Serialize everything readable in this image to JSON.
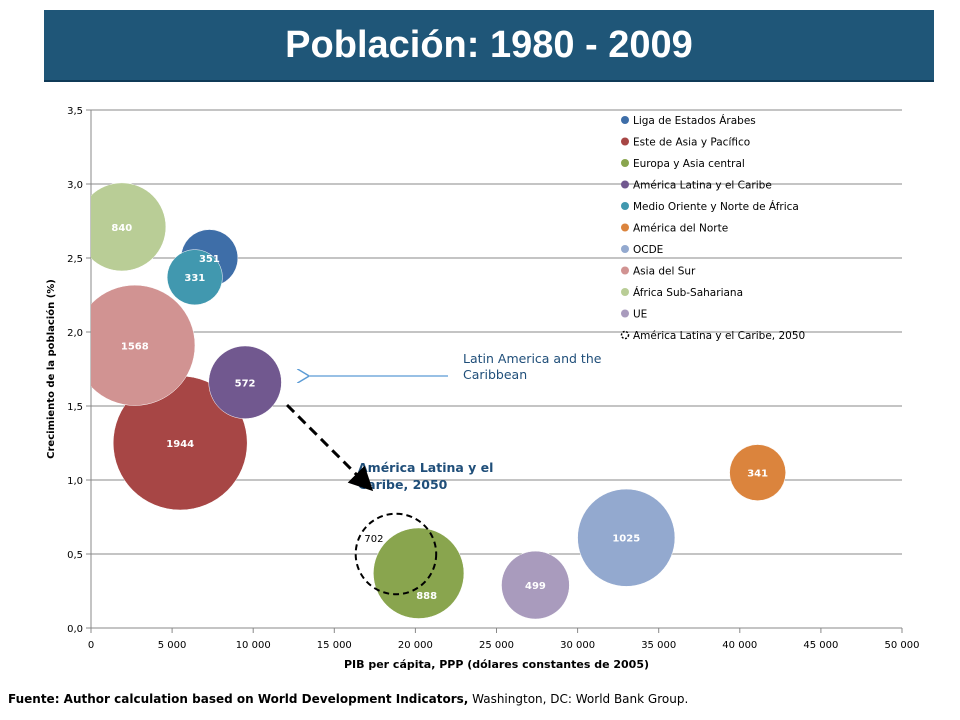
{
  "header": {
    "title": "Población: 1980 - 2009"
  },
  "footer": {
    "bold": "Fuente: Author calculation based on World Development Indicators,",
    "rest": " Washington, DC: World Bank Group."
  },
  "chart_data": {
    "type": "bubble",
    "title": "",
    "xlabel": "PIB per cápita, PPP (dólares constantes de 2005)",
    "ylabel": "Crecimiento de la población (%)",
    "xlim": [
      0,
      50000
    ],
    "ylim": [
      0,
      3.5
    ],
    "x_ticks": [
      0,
      5000,
      10000,
      15000,
      20000,
      25000,
      30000,
      35000,
      40000,
      45000,
      50000
    ],
    "x_tick_labels": [
      "0",
      "5 000",
      "10 000",
      "15 000",
      "20 000",
      "25 000",
      "30 000",
      "35 000",
      "40 000",
      "45 000",
      "50 000"
    ],
    "y_ticks": [
      0,
      0.5,
      1.0,
      1.5,
      2.0,
      2.5,
      3.0,
      3.5
    ],
    "y_tick_labels": [
      "0,0",
      "0,5",
      "1,0",
      "1,5",
      "2,0",
      "2,5",
      "3,0",
      "3,5"
    ],
    "grid": "horizontal",
    "legend_position": "top-right",
    "size_unit_note": "bubble area proportional to size value",
    "series": [
      {
        "name": "Liga de Estados Árabes",
        "color": "#3e6ea8",
        "x": 7300,
        "y": 2.5,
        "size": 351,
        "label": "351"
      },
      {
        "name": "Este de Asia y Pacífico",
        "color": "#a74645",
        "x": 5500,
        "y": 1.25,
        "size": 1944,
        "label": "1944"
      },
      {
        "name": "Europa y Asia central",
        "color": "#89a54e",
        "x": 20200,
        "y": 0.37,
        "size": 888,
        "label": "888"
      },
      {
        "name": "América Latina y el Caribe",
        "color": "#71588f",
        "x": 9500,
        "y": 1.66,
        "size": 572,
        "label": "572"
      },
      {
        "name": "Medio Oriente y Norte de África",
        "color": "#4198af",
        "x": 6400,
        "y": 2.37,
        "size": 331,
        "label": "331"
      },
      {
        "name": "América del Norte",
        "color": "#db843d",
        "x": 41100,
        "y": 1.05,
        "size": 341,
        "label": "341"
      },
      {
        "name": "OCDE",
        "color": "#93a9cf",
        "x": 33000,
        "y": 0.61,
        "size": 1025,
        "label": "1025"
      },
      {
        "name": "Asia del Sur",
        "color": "#d19392",
        "x": 2700,
        "y": 1.91,
        "size": 1568,
        "label": "1568"
      },
      {
        "name": "África Sub-Sahariana",
        "color": "#b9cd96",
        "x": 1900,
        "y": 2.71,
        "size": 840,
        "label": "840"
      },
      {
        "name": "UE",
        "color": "#a99bbd",
        "x": 27400,
        "y": 0.29,
        "size": 499,
        "label": "499"
      },
      {
        "name": "América Latina y el Caribe, 2050",
        "color": "none",
        "x": 18800,
        "y": 0.5,
        "size": 702,
        "label": "702",
        "dashed": true
      }
    ],
    "annotations": [
      {
        "text_lines": [
          "Latin America and the",
          "Caribbean"
        ],
        "color": "#1f4e79"
      },
      {
        "text_lines": [
          "América Latina y el",
          "Caribe, 2050"
        ],
        "color": "#1f4e79",
        "bold": true
      }
    ]
  }
}
